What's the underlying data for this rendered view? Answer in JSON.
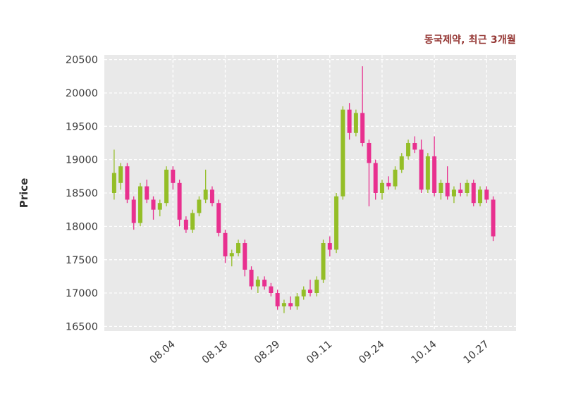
{
  "header": {
    "title": "동국제약, 최근 3개월"
  },
  "colors": {
    "up": "#94be27",
    "down": "#e8308f",
    "plot_bg": "#e9e9e9",
    "grid": "#ffffff",
    "tick": "#3d3d3d",
    "title": "#953734",
    "ylabel": "#333333"
  },
  "chart_data": {
    "type": "candlestick",
    "title": "동국제약, 최근 3개월",
    "xlabel": "",
    "ylabel": "Price",
    "grid": "dashed-white-on-gray",
    "legend": "none",
    "ylim": [
      16430,
      20570
    ],
    "y_ticks": [
      16500,
      17000,
      17500,
      18000,
      18500,
      19000,
      19500,
      20000,
      20500
    ],
    "x_tick_labels": [
      "08.04",
      "08.18",
      "08.29",
      "09.11",
      "09.24",
      "10.14",
      "10.27"
    ],
    "x_tick_indices": [
      9,
      17,
      25,
      33,
      41,
      49,
      57
    ],
    "pad_left": 1,
    "pad_right": 3,
    "ohlc": [
      [
        18500,
        19150,
        18400,
        18800
      ],
      [
        18650,
        18950,
        18550,
        18900
      ],
      [
        18900,
        18950,
        18350,
        18400
      ],
      [
        18400,
        18450,
        17950,
        18050
      ],
      [
        18050,
        18650,
        18000,
        18600
      ],
      [
        18600,
        18700,
        18350,
        18400
      ],
      [
        18400,
        18450,
        18100,
        18250
      ],
      [
        18250,
        18400,
        18150,
        18350
      ],
      [
        18350,
        18900,
        18300,
        18850
      ],
      [
        18850,
        18900,
        18550,
        18650
      ],
      [
        18650,
        18700,
        18000,
        18100
      ],
      [
        18100,
        18150,
        17900,
        17950
      ],
      [
        17950,
        18250,
        17900,
        18200
      ],
      [
        18200,
        18450,
        18150,
        18400
      ],
      [
        18400,
        18850,
        18350,
        18550
      ],
      [
        18550,
        18600,
        18300,
        18350
      ],
      [
        18350,
        18400,
        17850,
        17900
      ],
      [
        17900,
        17950,
        17450,
        17550
      ],
      [
        17550,
        17650,
        17400,
        17600
      ],
      [
        17600,
        17800,
        17550,
        17750
      ],
      [
        17750,
        17800,
        17250,
        17350
      ],
      [
        17350,
        17400,
        17050,
        17100
      ],
      [
        17100,
        17250,
        17000,
        17200
      ],
      [
        17200,
        17250,
        17050,
        17100
      ],
      [
        17100,
        17150,
        16950,
        17000
      ],
      [
        17000,
        17050,
        16750,
        16800
      ],
      [
        16800,
        16900,
        16700,
        16850
      ],
      [
        16850,
        16950,
        16750,
        16800
      ],
      [
        16800,
        17000,
        16750,
        16950
      ],
      [
        16950,
        17100,
        16900,
        17050
      ],
      [
        17050,
        17200,
        16950,
        17000
      ],
      [
        17000,
        17250,
        16950,
        17200
      ],
      [
        17200,
        17800,
        17150,
        17750
      ],
      [
        17750,
        17850,
        17550,
        17650
      ],
      [
        17650,
        18500,
        17600,
        18450
      ],
      [
        18450,
        19800,
        18400,
        19750
      ],
      [
        19750,
        19850,
        19300,
        19400
      ],
      [
        19400,
        19750,
        19350,
        19700
      ],
      [
        19700,
        20400,
        19200,
        19250
      ],
      [
        19250,
        19300,
        18300,
        18950
      ],
      [
        18950,
        19000,
        18400,
        18500
      ],
      [
        18500,
        18700,
        18400,
        18650
      ],
      [
        18650,
        18750,
        18550,
        18600
      ],
      [
        18600,
        18900,
        18550,
        18850
      ],
      [
        18850,
        19100,
        18800,
        19050
      ],
      [
        19050,
        19300,
        19000,
        19250
      ],
      [
        19250,
        19350,
        19100,
        19150
      ],
      [
        19150,
        19300,
        18500,
        18550
      ],
      [
        18550,
        19100,
        18500,
        19050
      ],
      [
        19050,
        19350,
        18450,
        18500
      ],
      [
        18500,
        18700,
        18400,
        18650
      ],
      [
        18650,
        18900,
        18400,
        18450
      ],
      [
        18450,
        18600,
        18350,
        18550
      ],
      [
        18550,
        18650,
        18450,
        18500
      ],
      [
        18500,
        18700,
        18450,
        18650
      ],
      [
        18650,
        18700,
        18300,
        18350
      ],
      [
        18350,
        18600,
        18300,
        18550
      ],
      [
        18550,
        18600,
        18350,
        18400
      ],
      [
        18400,
        18450,
        17780,
        17850
      ]
    ]
  }
}
